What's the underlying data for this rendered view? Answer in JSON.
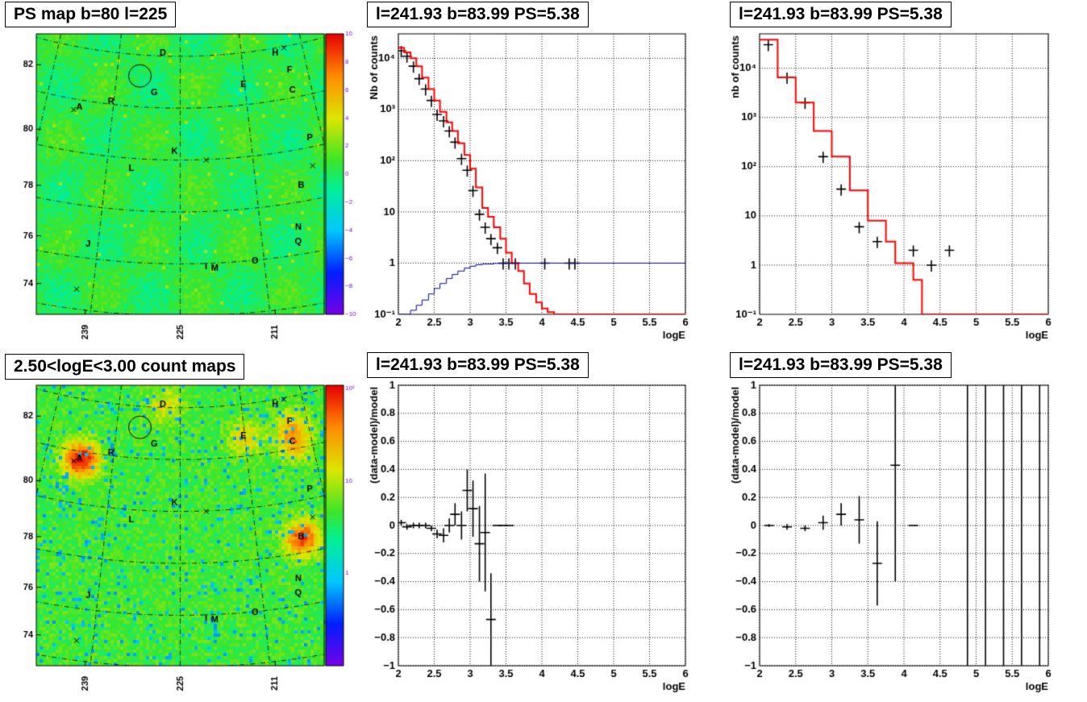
{
  "panels": {
    "ps_map": {
      "title": "PS map b=80 l=225",
      "x_ticks": [
        "239",
        "225",
        "211"
      ],
      "y_ticks": [
        "82",
        "80",
        "78",
        "76",
        "74"
      ],
      "colorbar_ticks": [
        "10",
        "8",
        "6",
        "4",
        "2",
        "0",
        "−2",
        "−4",
        "−6",
        "−8",
        "−10"
      ],
      "colorbar_range": [
        -10,
        10
      ]
    },
    "count_map": {
      "title": "2.50<logE<3.00 count maps",
      "x_ticks": [
        "239",
        "225",
        "211"
      ],
      "y_ticks": [
        "82",
        "80",
        "78",
        "76",
        "74"
      ],
      "colorbar_ticks": [
        "10²",
        "10",
        "1"
      ]
    },
    "source_labels": [
      "D",
      "H",
      "F",
      "C",
      "E",
      "G",
      "A",
      "R",
      "P",
      "K",
      "L",
      "B",
      "N",
      "J",
      "Q",
      "O",
      "I",
      "M"
    ],
    "map_markers": [
      "circle-marker",
      "x-marker"
    ]
  },
  "chart_data": [
    {
      "type": "line",
      "title": "l=241.93 b=83.99 PS=5.38",
      "xlabel": "logE",
      "ylabel": "Nb of counts",
      "yscale": "log",
      "xlim": [
        2,
        6
      ],
      "ylim": [
        0.1,
        30000
      ],
      "grid": true,
      "x_ticks": [
        "2",
        "2.5",
        "3",
        "3.5",
        "4",
        "4.5",
        "5",
        "5.5",
        "6"
      ],
      "y_ticks": [
        "1",
        "10",
        "10²",
        "10³",
        "10⁴"
      ],
      "y_corner_label": "10⁻¹",
      "series": [
        {
          "kind": "data-points",
          "color": "#000000",
          "x": [
            2.04,
            2.12,
            2.21,
            2.29,
            2.38,
            2.46,
            2.54,
            2.63,
            2.71,
            2.79,
            2.88,
            2.96,
            3.04,
            3.13,
            3.21,
            3.29,
            3.38,
            3.46,
            3.54,
            3.63,
            4.04,
            4.38,
            4.46
          ],
          "y": [
            14000,
            11000,
            7000,
            4000,
            2500,
            1500,
            800,
            600,
            380,
            230,
            110,
            65,
            26,
            9,
            5,
            3,
            2,
            1,
            1,
            1,
            1,
            1,
            1
          ]
        },
        {
          "kind": "model",
          "color": "#ff0000",
          "x": [
            2.0,
            2.08,
            2.17,
            2.25,
            2.33,
            2.42,
            2.5,
            2.58,
            2.67,
            2.75,
            2.83,
            2.92,
            3.0,
            3.08,
            3.17,
            3.25,
            3.33,
            3.42,
            3.5,
            3.58,
            3.67,
            3.75,
            3.83,
            3.92,
            4.0,
            4.08,
            4.17,
            4.25
          ],
          "y": [
            16000,
            13000,
            10000,
            7000,
            4200,
            2500,
            1500,
            900,
            560,
            380,
            220,
            130,
            70,
            30,
            12,
            8,
            5,
            3,
            1.6,
            1.0,
            0.7,
            0.4,
            0.25,
            0.17,
            0.13,
            0.11,
            0.1,
            0.1
          ]
        },
        {
          "kind": "acceptance",
          "color": "#0000aa",
          "x": [
            2.0,
            2.17,
            2.25,
            2.33,
            2.42,
            2.5,
            2.58,
            2.67,
            2.75,
            2.83,
            2.92,
            3.0,
            3.08,
            3.17,
            3.33,
            3.5,
            4.0,
            6.0
          ],
          "y": [
            0.1,
            0.12,
            0.15,
            0.19,
            0.25,
            0.32,
            0.4,
            0.5,
            0.6,
            0.7,
            0.8,
            0.87,
            0.93,
            0.96,
            0.99,
            1.0,
            1.0,
            1.0
          ]
        }
      ]
    },
    {
      "type": "line",
      "title": "l=241.93 b=83.99 PS=5.38",
      "xlabel": "logE",
      "ylabel": "nb of counts",
      "yscale": "log",
      "xlim": [
        2,
        6
      ],
      "ylim": [
        0.1,
        50000
      ],
      "grid": true,
      "x_ticks": [
        "2",
        "2.5",
        "3",
        "3.5",
        "4",
        "4.5",
        "5",
        "5.5",
        "6"
      ],
      "y_ticks": [
        "1",
        "10",
        "10²",
        "10³",
        "10⁴"
      ],
      "y_corner_label": "10⁻¹",
      "series": [
        {
          "kind": "data-points",
          "color": "#000000",
          "x": [
            2.12,
            2.38,
            2.63,
            2.88,
            3.13,
            3.38,
            3.63,
            4.13,
            4.38,
            4.63
          ],
          "y": [
            30000,
            6500,
            2000,
            160,
            35,
            6,
            3,
            2,
            1,
            2
          ]
        },
        {
          "kind": "model",
          "color": "#ff0000",
          "x": [
            2.0,
            2.25,
            2.5,
            2.75,
            3.0,
            3.25,
            3.5,
            3.75,
            3.88,
            4.13,
            4.25,
            4.5,
            6.0
          ],
          "y": [
            38000,
            6500,
            2000,
            530,
            160,
            33,
            8,
            3,
            1.1,
            0.5,
            0.1,
            0.1,
            0.1
          ]
        }
      ]
    },
    {
      "type": "scatter",
      "title": "l=241.93 b=83.99 PS=5.38",
      "xlabel": "logE",
      "ylabel": "(data-model)/model",
      "xlim": [
        2,
        6
      ],
      "ylim": [
        -1,
        1
      ],
      "grid": true,
      "x_ticks": [
        "2",
        "2.5",
        "3",
        "3.5",
        "4",
        "4.5",
        "5",
        "5.5",
        "6"
      ],
      "y_ticks": [
        "−1",
        "−0.8",
        "−0.6",
        "−0.4",
        "−0.2",
        "0",
        "0.2",
        "0.4",
        "0.6",
        "0.8",
        "1"
      ],
      "series": [
        {
          "kind": "residuals",
          "color": "#000000",
          "x": [
            2.04,
            2.12,
            2.21,
            2.29,
            2.38,
            2.46,
            2.54,
            2.63,
            2.71,
            2.79,
            2.88,
            2.96,
            3.04,
            3.13,
            3.21,
            3.29,
            3.38,
            3.46,
            3.54
          ],
          "y": [
            0.02,
            -0.01,
            0.0,
            0.0,
            0.0,
            -0.02,
            -0.06,
            -0.07,
            0.0,
            0.08,
            0.0,
            0.25,
            0.12,
            -0.13,
            -0.05,
            -0.67,
            0.0,
            0.0,
            0.0
          ],
          "err": [
            0.02,
            0.02,
            0.02,
            0.02,
            0.02,
            0.02,
            0.03,
            0.05,
            0.05,
            0.08,
            0.1,
            0.15,
            0.2,
            0.27,
            0.42,
            0.33,
            0.0,
            0.0,
            0.0
          ]
        }
      ]
    },
    {
      "type": "scatter",
      "title": "l=241.93 b=83.99 PS=5.38",
      "xlabel": "logE",
      "ylabel": "(data-model)/model",
      "xlim": [
        2,
        6
      ],
      "ylim": [
        -1,
        1
      ],
      "grid": true,
      "x_ticks": [
        "2",
        "2.5",
        "3",
        "3.5",
        "4",
        "4.5",
        "5",
        "5.5",
        "6"
      ],
      "y_ticks": [
        "−1",
        "−0.8",
        "−0.6",
        "−0.4",
        "−0.2",
        "0",
        "0.2",
        "0.4",
        "0.6",
        "0.8",
        "1"
      ],
      "series": [
        {
          "kind": "residuals",
          "color": "#000000",
          "x": [
            2.13,
            2.38,
            2.63,
            2.88,
            3.13,
            3.38,
            3.63,
            3.88,
            4.13
          ],
          "y": [
            0.0,
            -0.01,
            -0.02,
            0.02,
            0.08,
            0.04,
            -0.27,
            0.43,
            0.0
          ],
          "err": [
            0.01,
            0.02,
            0.02,
            0.05,
            0.08,
            0.17,
            0.3,
            0.83,
            0.0
          ]
        },
        {
          "kind": "full-range-bars",
          "color": "#000000",
          "x": [
            4.88,
            5.13,
            5.38,
            5.63,
            5.88
          ]
        }
      ]
    }
  ]
}
